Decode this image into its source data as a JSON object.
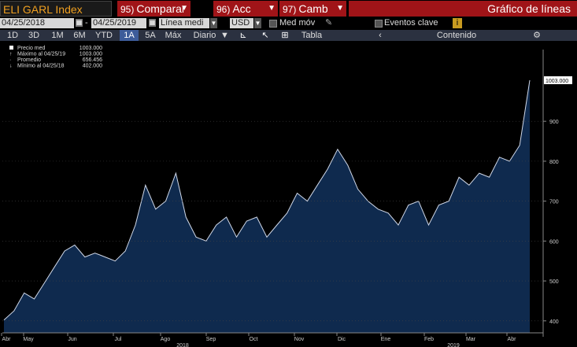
{
  "toolbar": {
    "ticker": "ELI GARL Index",
    "compare": {
      "num": "95)",
      "label": "Comparar"
    },
    "acc": {
      "num": "96)",
      "label": "Acc"
    },
    "camb": {
      "num": "97)",
      "label": "Camb"
    },
    "title": "Gráfico de líneas"
  },
  "controls": {
    "start_date": "04/25/2018",
    "end_date": "04/25/2019",
    "line_type": "Línea medi",
    "currency": "USD",
    "moving_avg": "Med móv",
    "key_events": "Eventos clave",
    "info": "i"
  },
  "periods": [
    "1D",
    "3D",
    "1M",
    "6M",
    "YTD",
    "1A",
    "5A",
    "Máx"
  ],
  "active_period": "1A",
  "frequency": "Diario",
  "table_label": "Tabla",
  "content_label": "Contenido",
  "colors": {
    "fill": "#0f2a4e",
    "line": "#d0d8e8",
    "accent": "#a01418"
  },
  "chart_data": {
    "type": "area",
    "legend": [
      {
        "label": "Precio med",
        "value": "1003.000"
      },
      {
        "label": "Máximo al 04/25/19",
        "value": "1003.000"
      },
      {
        "label": "Promedio",
        "value": "656.456"
      },
      {
        "label": "Mínimo al 04/25/18",
        "value": "402.000"
      }
    ],
    "last_value_label": "1003.000",
    "y_ticks": [
      "400",
      "500",
      "600",
      "700",
      "800",
      "900"
    ],
    "ylim": [
      370,
      1060
    ],
    "months": [
      "Abr",
      "May",
      "Jun",
      "Jul",
      "Ago",
      "Sep",
      "Oct",
      "Nov",
      "Dic",
      "Ene",
      "Feb",
      "Mar",
      "Abr"
    ],
    "years": [
      "2018",
      "2019"
    ],
    "x": [
      "04/25/18",
      "05/01/18",
      "05/08/18",
      "05/15/18",
      "05/22/18",
      "05/29/18",
      "06/05/18",
      "06/12/18",
      "06/19/18",
      "06/26/18",
      "07/03/18",
      "07/10/18",
      "07/17/18",
      "07/24/18",
      "07/31/18",
      "08/07/18",
      "08/14/18",
      "08/21/18",
      "08/28/18",
      "09/04/18",
      "09/11/18",
      "09/18/18",
      "09/25/18",
      "10/02/18",
      "10/09/18",
      "10/16/18",
      "10/23/18",
      "10/30/18",
      "11/06/18",
      "11/13/18",
      "11/20/18",
      "11/27/18",
      "12/04/18",
      "12/11/18",
      "12/18/18",
      "12/25/18",
      "01/01/19",
      "01/08/19",
      "01/15/19",
      "01/22/19",
      "01/29/19",
      "02/05/19",
      "02/12/19",
      "02/19/19",
      "02/26/19",
      "03/05/19",
      "03/12/19",
      "03/19/19",
      "03/26/19",
      "04/02/19",
      "04/09/19",
      "04/16/19",
      "04/25/19"
    ],
    "values": [
      402,
      425,
      470,
      455,
      495,
      535,
      575,
      590,
      560,
      570,
      560,
      550,
      575,
      640,
      740,
      680,
      700,
      770,
      660,
      610,
      600,
      640,
      660,
      610,
      650,
      660,
      610,
      640,
      670,
      720,
      700,
      740,
      780,
      830,
      790,
      730,
      700,
      680,
      670,
      640,
      690,
      700,
      640,
      690,
      700,
      760,
      740,
      770,
      760,
      810,
      800,
      840,
      1003
    ]
  }
}
